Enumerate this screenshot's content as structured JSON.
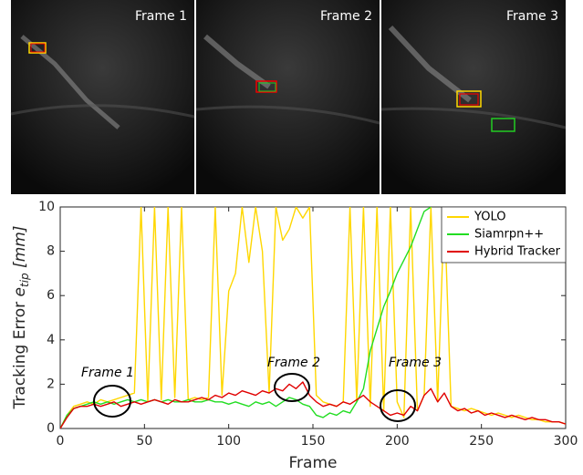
{
  "panels": [
    "Frame 1",
    "Frame 2",
    "Frame 3"
  ],
  "chart_data": {
    "type": "line",
    "x_label": "Frame",
    "y_label": "Tracking Error",
    "y_label_symbol": "e",
    "y_label_sub": "tip",
    "y_label_unit": "[mm]",
    "xlim": [
      0,
      300
    ],
    "ylim": [
      0,
      10
    ],
    "xticks": [
      0,
      50,
      100,
      150,
      200,
      250,
      300
    ],
    "yticks": [
      0,
      2,
      4,
      6,
      8,
      10
    ],
    "legend": "top-right",
    "annotations": [
      "Frame 1",
      "Frame 2",
      "Frame 3"
    ],
    "x": [
      0,
      4,
      8,
      12,
      16,
      20,
      24,
      28,
      32,
      36,
      40,
      44,
      48,
      52,
      56,
      60,
      64,
      68,
      72,
      76,
      80,
      84,
      88,
      92,
      96,
      100,
      104,
      108,
      112,
      116,
      120,
      124,
      128,
      132,
      136,
      140,
      144,
      148,
      152,
      156,
      160,
      164,
      168,
      172,
      176,
      180,
      184,
      188,
      192,
      196,
      200,
      204,
      208,
      212,
      216,
      220,
      224,
      228,
      232,
      236,
      240,
      244,
      248,
      252,
      256,
      260,
      264,
      268,
      272,
      276,
      280,
      284,
      288,
      292,
      296,
      300
    ],
    "series": [
      {
        "name": "YOLO",
        "color": "#ffd700",
        "values": [
          0,
          0.6,
          1.0,
          1.1,
          1.2,
          1.1,
          1.3,
          1.2,
          1.3,
          1.4,
          1.5,
          1.6,
          10,
          1.2,
          10,
          1.3,
          10,
          1.4,
          10,
          1.3,
          1.4,
          1.3,
          1.4,
          10,
          1.5,
          6.2,
          7,
          10,
          7.5,
          10,
          8,
          1.6,
          10,
          8.5,
          9,
          10,
          9.5,
          10,
          1.5,
          1.2,
          1.1,
          1.0,
          1.2,
          10,
          1.2,
          10,
          1.0,
          10,
          0.8,
          10,
          1.2,
          0.5,
          10,
          0.8,
          1.5,
          10,
          1.2,
          10,
          1.0,
          0.9,
          0.8,
          0.9,
          0.8,
          0.7,
          0.6,
          0.7,
          0.6,
          0.5,
          0.6,
          0.5,
          0.4,
          0.4,
          0.3,
          0.3,
          0.3,
          0.2
        ]
      },
      {
        "name": "Siamrpn++",
        "color": "#22dd22",
        "values": [
          0,
          0.6,
          0.9,
          1.0,
          1.1,
          1.2,
          1.1,
          1.2,
          1.1,
          1.2,
          1.3,
          1.2,
          1.3,
          1.2,
          1.3,
          1.2,
          1.3,
          1.2,
          1.2,
          1.3,
          1.2,
          1.2,
          1.3,
          1.2,
          1.2,
          1.1,
          1.2,
          1.1,
          1.0,
          1.2,
          1.1,
          1.2,
          1.0,
          1.2,
          1.4,
          1.3,
          1.1,
          1.0,
          0.6,
          0.5,
          0.7,
          0.6,
          0.8,
          0.7,
          1.2,
          1.8,
          3.5,
          4.5,
          5.5,
          6.2,
          7.0,
          7.6,
          8.2,
          9.0,
          9.8,
          10,
          null,
          null,
          null,
          null,
          null,
          null,
          null,
          null,
          null,
          null,
          null,
          null,
          null,
          null,
          null,
          null,
          null,
          null,
          null,
          null
        ]
      },
      {
        "name": "Hybrid Tracker",
        "color": "#e00000",
        "values": [
          0,
          0.5,
          0.9,
          1.0,
          1.0,
          1.1,
          1.0,
          1.1,
          1.2,
          1.0,
          1.1,
          1.2,
          1.1,
          1.2,
          1.3,
          1.2,
          1.1,
          1.3,
          1.2,
          1.2,
          1.3,
          1.4,
          1.3,
          1.5,
          1.4,
          1.6,
          1.5,
          1.7,
          1.6,
          1.5,
          1.7,
          1.6,
          1.8,
          1.7,
          2.0,
          1.8,
          2.1,
          1.5,
          1.2,
          1.0,
          1.1,
          1.0,
          1.2,
          1.1,
          1.3,
          1.5,
          1.2,
          1.0,
          0.8,
          0.6,
          0.7,
          0.6,
          1.0,
          0.8,
          1.5,
          1.8,
          1.2,
          1.6,
          1.0,
          0.8,
          0.9,
          0.7,
          0.8,
          0.6,
          0.7,
          0.6,
          0.5,
          0.6,
          0.5,
          0.4,
          0.5,
          0.4,
          0.4,
          0.3,
          0.3,
          0.2
        ]
      }
    ]
  }
}
